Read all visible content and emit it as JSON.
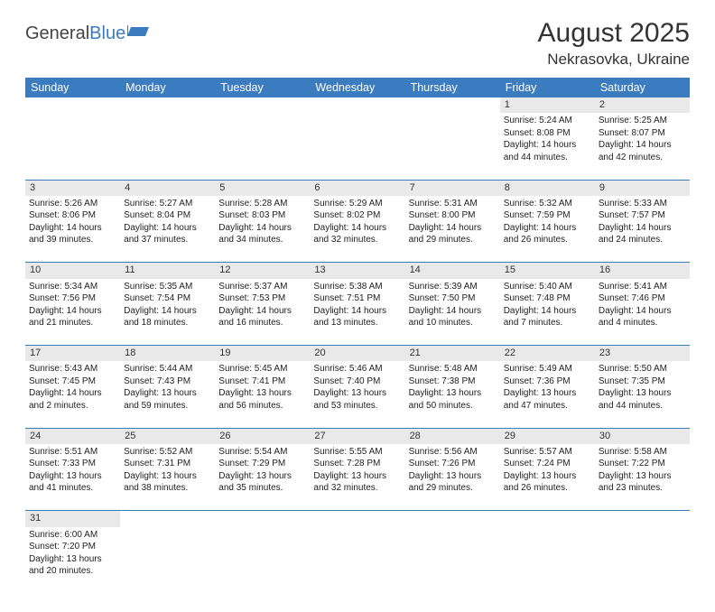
{
  "logo": {
    "part1": "General",
    "part2": "Blue"
  },
  "title": "August 2025",
  "location": "Nekrasovka, Ukraine",
  "colors": {
    "header_bg": "#3b7bbf",
    "header_text": "#ffffff",
    "daynum_bg": "#e9e9e9",
    "row_divider": "#3b7bbf",
    "text": "#222222"
  },
  "weekdays": [
    "Sunday",
    "Monday",
    "Tuesday",
    "Wednesday",
    "Thursday",
    "Friday",
    "Saturday"
  ],
  "weeks": [
    {
      "nums": [
        "",
        "",
        "",
        "",
        "",
        "1",
        "2"
      ],
      "cells": [
        null,
        null,
        null,
        null,
        null,
        {
          "sunrise": "Sunrise: 5:24 AM",
          "sunset": "Sunset: 8:08 PM",
          "day1": "Daylight: 14 hours",
          "day2": "and 44 minutes."
        },
        {
          "sunrise": "Sunrise: 5:25 AM",
          "sunset": "Sunset: 8:07 PM",
          "day1": "Daylight: 14 hours",
          "day2": "and 42 minutes."
        }
      ]
    },
    {
      "nums": [
        "3",
        "4",
        "5",
        "6",
        "7",
        "8",
        "9"
      ],
      "cells": [
        {
          "sunrise": "Sunrise: 5:26 AM",
          "sunset": "Sunset: 8:06 PM",
          "day1": "Daylight: 14 hours",
          "day2": "and 39 minutes."
        },
        {
          "sunrise": "Sunrise: 5:27 AM",
          "sunset": "Sunset: 8:04 PM",
          "day1": "Daylight: 14 hours",
          "day2": "and 37 minutes."
        },
        {
          "sunrise": "Sunrise: 5:28 AM",
          "sunset": "Sunset: 8:03 PM",
          "day1": "Daylight: 14 hours",
          "day2": "and 34 minutes."
        },
        {
          "sunrise": "Sunrise: 5:29 AM",
          "sunset": "Sunset: 8:02 PM",
          "day1": "Daylight: 14 hours",
          "day2": "and 32 minutes."
        },
        {
          "sunrise": "Sunrise: 5:31 AM",
          "sunset": "Sunset: 8:00 PM",
          "day1": "Daylight: 14 hours",
          "day2": "and 29 minutes."
        },
        {
          "sunrise": "Sunrise: 5:32 AM",
          "sunset": "Sunset: 7:59 PM",
          "day1": "Daylight: 14 hours",
          "day2": "and 26 minutes."
        },
        {
          "sunrise": "Sunrise: 5:33 AM",
          "sunset": "Sunset: 7:57 PM",
          "day1": "Daylight: 14 hours",
          "day2": "and 24 minutes."
        }
      ]
    },
    {
      "nums": [
        "10",
        "11",
        "12",
        "13",
        "14",
        "15",
        "16"
      ],
      "cells": [
        {
          "sunrise": "Sunrise: 5:34 AM",
          "sunset": "Sunset: 7:56 PM",
          "day1": "Daylight: 14 hours",
          "day2": "and 21 minutes."
        },
        {
          "sunrise": "Sunrise: 5:35 AM",
          "sunset": "Sunset: 7:54 PM",
          "day1": "Daylight: 14 hours",
          "day2": "and 18 minutes."
        },
        {
          "sunrise": "Sunrise: 5:37 AM",
          "sunset": "Sunset: 7:53 PM",
          "day1": "Daylight: 14 hours",
          "day2": "and 16 minutes."
        },
        {
          "sunrise": "Sunrise: 5:38 AM",
          "sunset": "Sunset: 7:51 PM",
          "day1": "Daylight: 14 hours",
          "day2": "and 13 minutes."
        },
        {
          "sunrise": "Sunrise: 5:39 AM",
          "sunset": "Sunset: 7:50 PM",
          "day1": "Daylight: 14 hours",
          "day2": "and 10 minutes."
        },
        {
          "sunrise": "Sunrise: 5:40 AM",
          "sunset": "Sunset: 7:48 PM",
          "day1": "Daylight: 14 hours",
          "day2": "and 7 minutes."
        },
        {
          "sunrise": "Sunrise: 5:41 AM",
          "sunset": "Sunset: 7:46 PM",
          "day1": "Daylight: 14 hours",
          "day2": "and 4 minutes."
        }
      ]
    },
    {
      "nums": [
        "17",
        "18",
        "19",
        "20",
        "21",
        "22",
        "23"
      ],
      "cells": [
        {
          "sunrise": "Sunrise: 5:43 AM",
          "sunset": "Sunset: 7:45 PM",
          "day1": "Daylight: 14 hours",
          "day2": "and 2 minutes."
        },
        {
          "sunrise": "Sunrise: 5:44 AM",
          "sunset": "Sunset: 7:43 PM",
          "day1": "Daylight: 13 hours",
          "day2": "and 59 minutes."
        },
        {
          "sunrise": "Sunrise: 5:45 AM",
          "sunset": "Sunset: 7:41 PM",
          "day1": "Daylight: 13 hours",
          "day2": "and 56 minutes."
        },
        {
          "sunrise": "Sunrise: 5:46 AM",
          "sunset": "Sunset: 7:40 PM",
          "day1": "Daylight: 13 hours",
          "day2": "and 53 minutes."
        },
        {
          "sunrise": "Sunrise: 5:48 AM",
          "sunset": "Sunset: 7:38 PM",
          "day1": "Daylight: 13 hours",
          "day2": "and 50 minutes."
        },
        {
          "sunrise": "Sunrise: 5:49 AM",
          "sunset": "Sunset: 7:36 PM",
          "day1": "Daylight: 13 hours",
          "day2": "and 47 minutes."
        },
        {
          "sunrise": "Sunrise: 5:50 AM",
          "sunset": "Sunset: 7:35 PM",
          "day1": "Daylight: 13 hours",
          "day2": "and 44 minutes."
        }
      ]
    },
    {
      "nums": [
        "24",
        "25",
        "26",
        "27",
        "28",
        "29",
        "30"
      ],
      "cells": [
        {
          "sunrise": "Sunrise: 5:51 AM",
          "sunset": "Sunset: 7:33 PM",
          "day1": "Daylight: 13 hours",
          "day2": "and 41 minutes."
        },
        {
          "sunrise": "Sunrise: 5:52 AM",
          "sunset": "Sunset: 7:31 PM",
          "day1": "Daylight: 13 hours",
          "day2": "and 38 minutes."
        },
        {
          "sunrise": "Sunrise: 5:54 AM",
          "sunset": "Sunset: 7:29 PM",
          "day1": "Daylight: 13 hours",
          "day2": "and 35 minutes."
        },
        {
          "sunrise": "Sunrise: 5:55 AM",
          "sunset": "Sunset: 7:28 PM",
          "day1": "Daylight: 13 hours",
          "day2": "and 32 minutes."
        },
        {
          "sunrise": "Sunrise: 5:56 AM",
          "sunset": "Sunset: 7:26 PM",
          "day1": "Daylight: 13 hours",
          "day2": "and 29 minutes."
        },
        {
          "sunrise": "Sunrise: 5:57 AM",
          "sunset": "Sunset: 7:24 PM",
          "day1": "Daylight: 13 hours",
          "day2": "and 26 minutes."
        },
        {
          "sunrise": "Sunrise: 5:58 AM",
          "sunset": "Sunset: 7:22 PM",
          "day1": "Daylight: 13 hours",
          "day2": "and 23 minutes."
        }
      ]
    },
    {
      "nums": [
        "31",
        "",
        "",
        "",
        "",
        "",
        ""
      ],
      "cells": [
        {
          "sunrise": "Sunrise: 6:00 AM",
          "sunset": "Sunset: 7:20 PM",
          "day1": "Daylight: 13 hours",
          "day2": "and 20 minutes."
        },
        null,
        null,
        null,
        null,
        null,
        null
      ]
    }
  ]
}
